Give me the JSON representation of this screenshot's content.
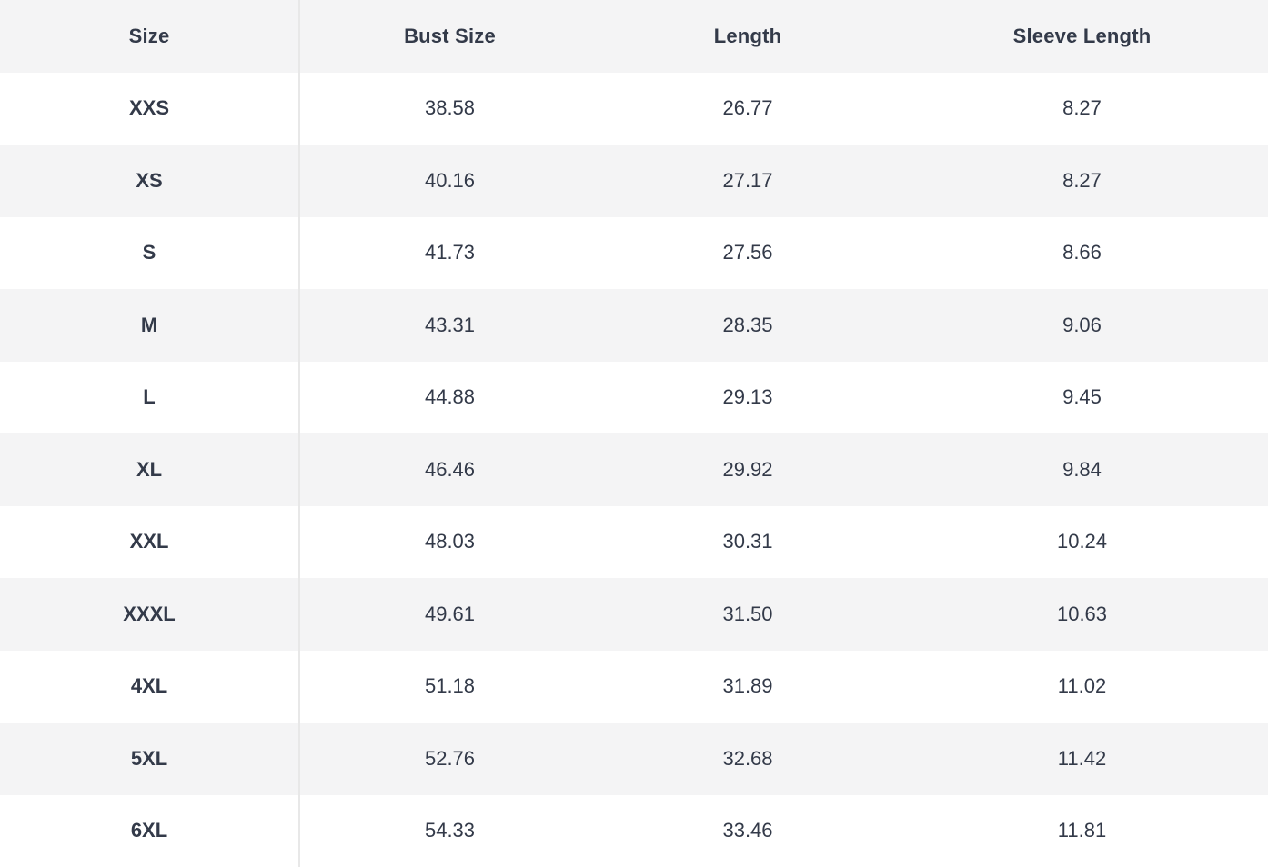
{
  "size_chart": {
    "columns": {
      "size": "Size",
      "bust": "Bust Size",
      "length": "Length",
      "sleeve": "Sleeve Length"
    },
    "rows": [
      [
        "XXS",
        "38.58",
        "26.77",
        "8.27"
      ],
      [
        "XS",
        "40.16",
        "27.17",
        "8.27"
      ],
      [
        "S",
        "41.73",
        "27.56",
        "8.66"
      ],
      [
        "M",
        "43.31",
        "28.35",
        "9.06"
      ],
      [
        "L",
        "44.88",
        "29.13",
        "9.45"
      ],
      [
        "XL",
        "46.46",
        "29.92",
        "9.84"
      ],
      [
        "XXL",
        "48.03",
        "30.31",
        "10.24"
      ],
      [
        "XXXL",
        "49.61",
        "31.50",
        "10.63"
      ],
      [
        "4XL",
        "51.18",
        "31.89",
        "11.02"
      ],
      [
        "5XL",
        "52.76",
        "32.68",
        "11.42"
      ],
      [
        "6XL",
        "54.33",
        "33.46",
        "11.81"
      ]
    ],
    "colors": {
      "stripe_bg": "#f4f4f5",
      "row_bg": "#ffffff",
      "text": "#333a49",
      "divider": "#e8e8e8"
    }
  }
}
